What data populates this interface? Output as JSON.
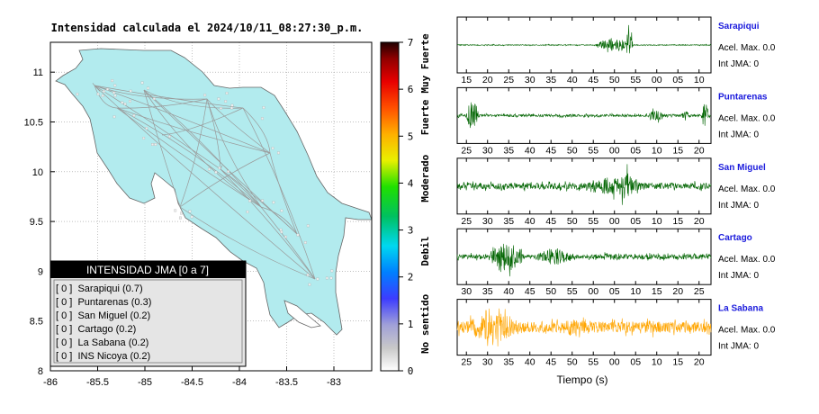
{
  "map": {
    "title": "Intensidad calculada el 2024/10/11_08:27:30_p.m.",
    "xticks": [
      "-86",
      "-85.5",
      "-85",
      "-84.5",
      "-84",
      "-83.5",
      "-83"
    ],
    "yticks": [
      "11",
      "10.5",
      "10",
      "9.5",
      "9",
      "8.5",
      "8"
    ],
    "xlim": [
      -86,
      -82.6
    ],
    "ylim": [
      8,
      11.3
    ],
    "land_color": "#b2ebee",
    "road_color": "#9a9a9a",
    "legend": {
      "title": "INTENSIDAD JMA [0 a 7]",
      "items": [
        "[ 0 ]  Sarapiqui (0.7)",
        "[ 0 ]  Puntarenas (0.3)",
        "[ 0 ]  San Miguel (0.2)",
        "[ 0 ]  Cartago (0.2)",
        "[ 0 ]  La Sabana (0.2)",
        "[ 0 ]  INS Nicoya (0.2)"
      ]
    }
  },
  "colorbar": {
    "ticks": [
      "7",
      "6",
      "5",
      "4",
      "3",
      "2",
      "1",
      "0"
    ],
    "class_labels": [
      "Muy Fuerte",
      "Fuerte",
      "Moderado",
      "Debil",
      "No sentido"
    ]
  },
  "waveforms": {
    "xlabel": "Tiempo (s)",
    "trace_color": "#006400",
    "highlight_color": "#ffa500",
    "station_color": "#1a1adc"
  },
  "chart_data": [
    {
      "type": "line",
      "station": "Sarapiqui",
      "accel": "Acel. Max. 0.0",
      "jma": "Int JMA: 0",
      "xticks": [
        "15",
        "20",
        "25",
        "30",
        "35",
        "40",
        "45",
        "50",
        "55",
        "00",
        "05",
        "10"
      ],
      "color": "#006400",
      "seed": 11,
      "events": [
        [
          0.54,
          0.72,
          0.45
        ],
        [
          0.66,
          0.7,
          0.95
        ]
      ],
      "base": 0.03
    },
    {
      "type": "line",
      "station": "Puntarenas",
      "accel": "Acel. Max. 0.0",
      "jma": "Int JMA: 0",
      "xticks": [
        "25",
        "30",
        "35",
        "40",
        "45",
        "50",
        "55",
        "00",
        "05",
        "10",
        "15",
        "20"
      ],
      "color": "#006400",
      "seed": 23,
      "events": [
        [
          0.03,
          0.1,
          0.9
        ],
        [
          0.74,
          0.84,
          0.3
        ],
        [
          0.88,
          0.93,
          0.3
        ],
        [
          0.96,
          1.0,
          0.8
        ]
      ],
      "base": 0.08
    },
    {
      "type": "line",
      "station": "San Miguel",
      "accel": "Acel. Max. 0.0",
      "jma": "Int JMA: 0",
      "xticks": [
        "25",
        "30",
        "35",
        "40",
        "45",
        "50",
        "55",
        "00",
        "05",
        "10",
        "15",
        "20"
      ],
      "color": "#006400",
      "seed": 37,
      "events": [
        [
          0.45,
          0.85,
          0.55
        ],
        [
          0.62,
          0.72,
          0.9
        ]
      ],
      "base": 0.2
    },
    {
      "type": "line",
      "station": "Cartago",
      "accel": "Acel. Max. 0.0",
      "jma": "Int JMA: 0",
      "xticks": [
        "30",
        "35",
        "40",
        "45",
        "50",
        "55",
        "00",
        "05",
        "10",
        "15",
        "20",
        "25"
      ],
      "color": "#006400",
      "seed": 51,
      "events": [
        [
          0.12,
          0.3,
          0.95
        ],
        [
          0.3,
          0.5,
          0.55
        ],
        [
          0.5,
          0.8,
          0.2
        ]
      ],
      "base": 0.15
    },
    {
      "type": "line",
      "station": "La Sabana",
      "accel": "Acel. Max. 0.0",
      "jma": "Int JMA: 0",
      "xticks": [
        "25",
        "30",
        "35",
        "40",
        "45",
        "50",
        "55",
        "00",
        "05",
        "10",
        "15",
        "20"
      ],
      "color": "#ffa500",
      "seed": 67,
      "events": [
        [
          0.0,
          0.35,
          0.9
        ],
        [
          0.35,
          0.6,
          0.5
        ],
        [
          0.6,
          1.0,
          0.4
        ]
      ],
      "base": 0.35
    }
  ]
}
